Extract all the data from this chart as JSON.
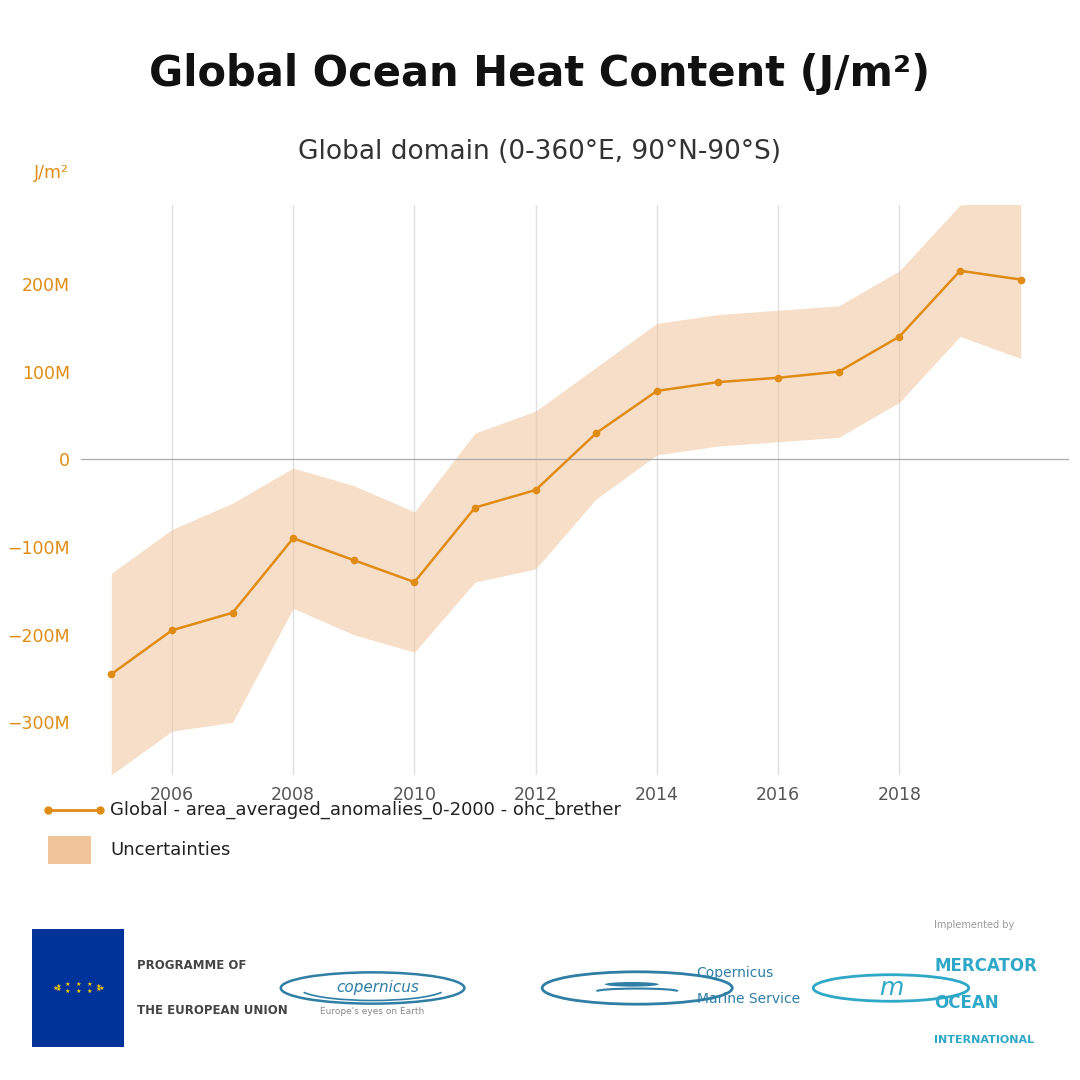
{
  "title": "Global Ocean Heat Content (J/m²)",
  "subtitle": "Global domain (0-360°E, 90°N-90°S)",
  "ylabel": "J/m²",
  "background_color": "#ffffff",
  "line_color": "#E08C14",
  "uncertainty_color": "#F2C49B",
  "uncertainty_alpha": 0.55,
  "zero_line_color": "#aaaaaa",
  "grid_color": "#e0e0e0",
  "title_fontsize": 30,
  "subtitle_fontsize": 20,
  "ytick_color": "#E08C14",
  "xtick_color": "#555555",
  "years": [
    2005,
    2006,
    2007,
    2008,
    2009,
    2010,
    2011,
    2012,
    2013,
    2014,
    2015,
    2016,
    2017,
    2018,
    2019,
    2020
  ],
  "values": [
    -245,
    -195,
    -175,
    -90,
    -115,
    -140,
    -55,
    -35,
    30,
    78,
    88,
    93,
    100,
    140,
    215,
    205
  ],
  "uncertainty_upper": [
    -130,
    -80,
    -50,
    -10,
    -30,
    -60,
    30,
    55,
    105,
    155,
    165,
    170,
    175,
    215,
    290,
    295
  ],
  "uncertainty_lower": [
    -360,
    -310,
    -300,
    -170,
    -200,
    -220,
    -140,
    -125,
    -45,
    5,
    15,
    20,
    25,
    65,
    140,
    115
  ],
  "ylim": [
    -360,
    290
  ],
  "xlim": [
    2004.5,
    2020.8
  ],
  "yticks": [
    -300,
    -200,
    -100,
    0,
    100,
    200
  ],
  "ytick_labels": [
    "−300M",
    "−200M",
    "−100M",
    "0",
    "100M",
    "200M"
  ],
  "xticks": [
    2006,
    2008,
    2010,
    2012,
    2014,
    2016,
    2018
  ],
  "legend_line_label": "Global - area_averaged_anomalies_0-2000 - ohc_brether",
  "legend_uncertainty_label": "Uncertainties",
  "divider_color": "#b5a882",
  "eu_blue": "#003399",
  "eu_yellow": "#FFCC00",
  "cop_blue": "#2E7EA6",
  "mercator_teal": "#2FA8C8"
}
